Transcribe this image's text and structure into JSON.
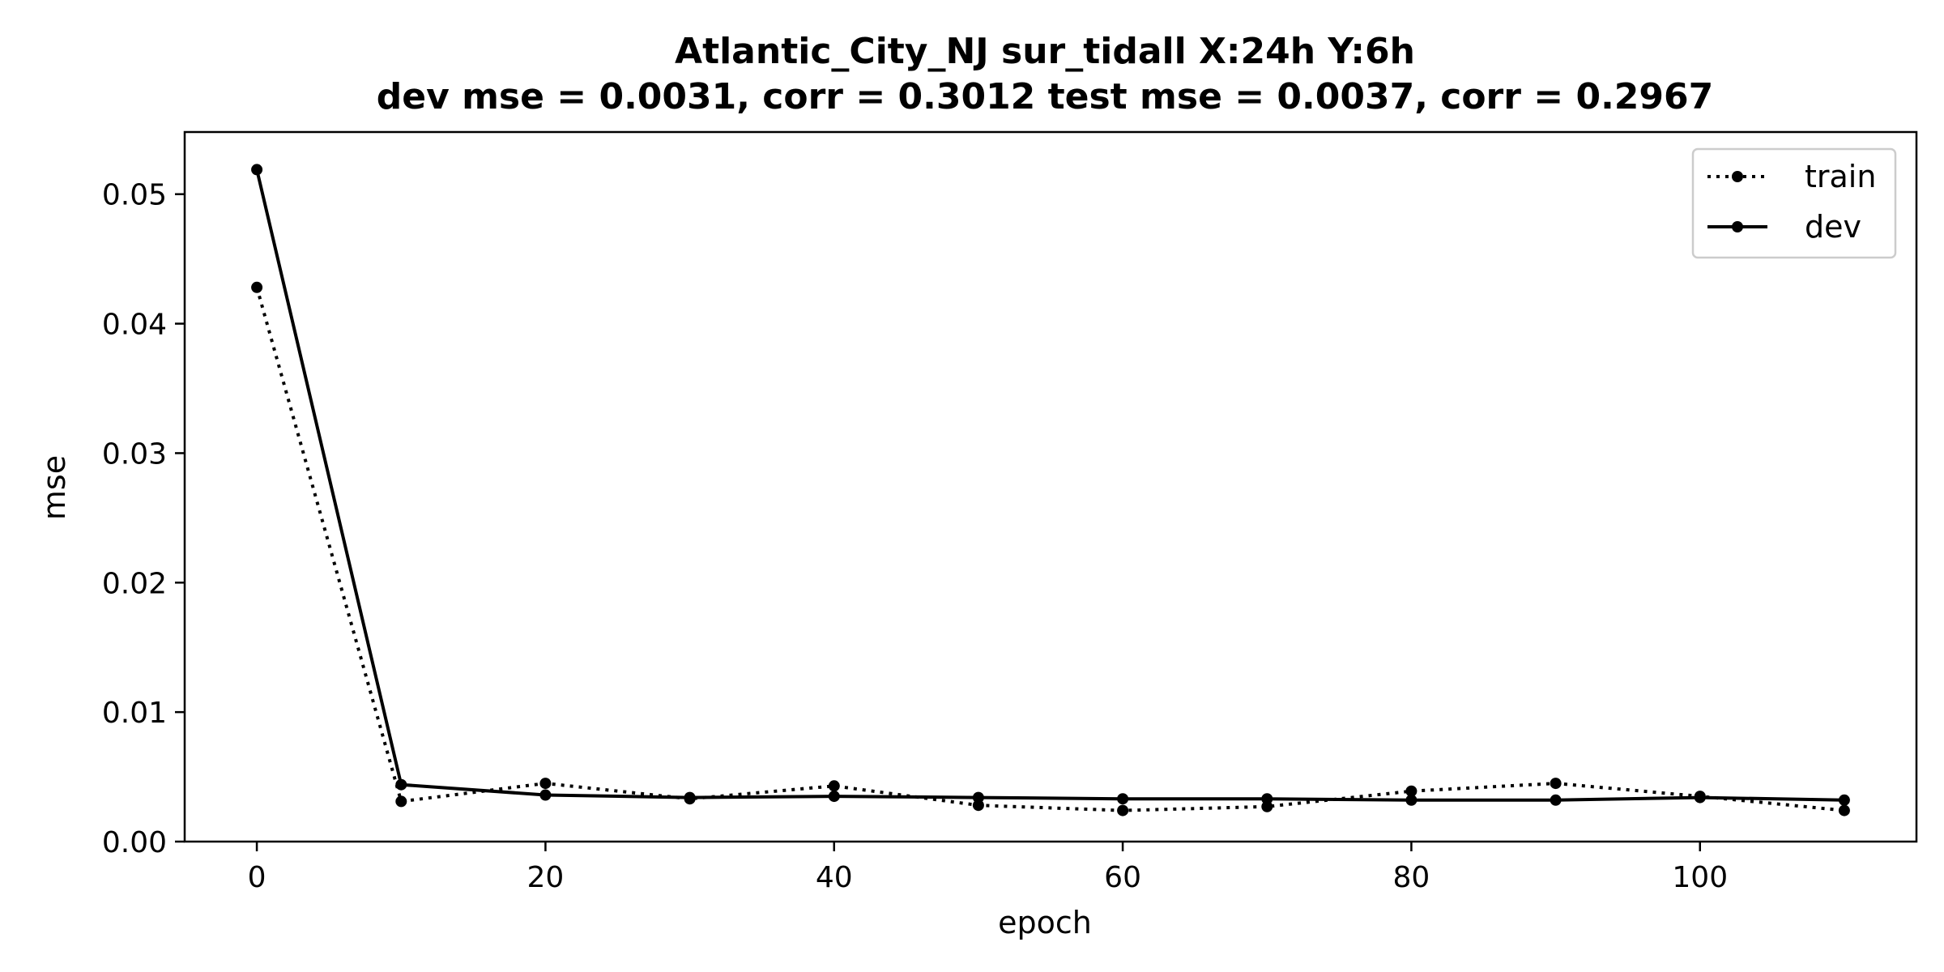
{
  "chart_data": {
    "type": "line",
    "title": "Atlantic_City_NJ   sur_tidall   X:24h   Y:6h",
    "subtitle": "dev mse = 0.0031, corr = 0.3012   test mse = 0.0037, corr = 0.2967",
    "xlabel": "epoch",
    "ylabel": "mse",
    "xlim": [
      -5,
      115
    ],
    "ylim": [
      0.0,
      0.0548
    ],
    "xticks": [
      0,
      20,
      40,
      60,
      80,
      100
    ],
    "xtick_labels": [
      "0",
      "20",
      "40",
      "60",
      "80",
      "100"
    ],
    "yticks": [
      0.0,
      0.01,
      0.02,
      0.03,
      0.04,
      0.05
    ],
    "ytick_labels": [
      "0.00",
      "0.01",
      "0.02",
      "0.03",
      "0.04",
      "0.05"
    ],
    "grid": false,
    "legend_position": "top-right",
    "x": [
      0,
      10,
      20,
      30,
      40,
      50,
      60,
      70,
      80,
      90,
      100,
      110
    ],
    "series": [
      {
        "name": "train",
        "style": "dotted",
        "color": "#000000",
        "values": [
          0.0428,
          0.0031,
          0.0045,
          0.0033,
          0.0043,
          0.0028,
          0.0024,
          0.0027,
          0.0039,
          0.0045,
          0.0035,
          0.0024
        ]
      },
      {
        "name": "dev",
        "style": "solid",
        "color": "#000000",
        "values": [
          0.0519,
          0.0044,
          0.0036,
          0.0034,
          0.0035,
          0.0034,
          0.0033,
          0.0033,
          0.0032,
          0.0032,
          0.0034,
          0.0032
        ]
      }
    ]
  }
}
